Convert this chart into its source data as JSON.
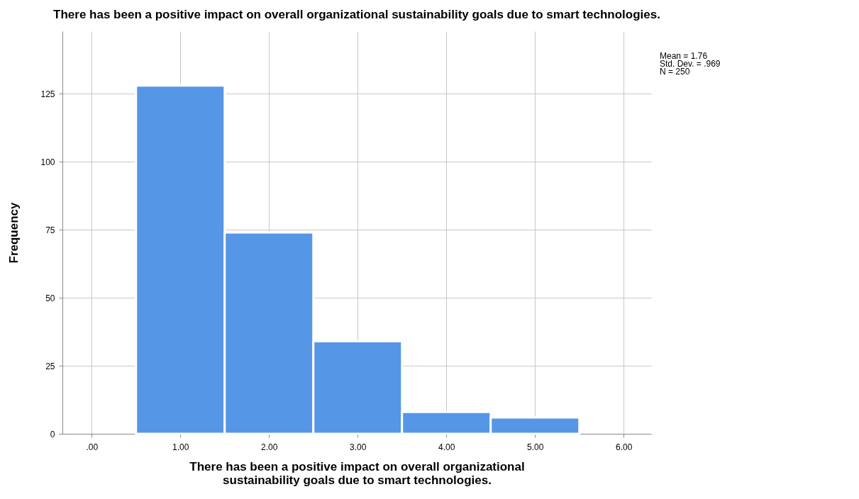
{
  "chart_data": {
    "type": "histogram",
    "title": "There has been a positive impact on overall organizational sustainability goals due to smart technologies.",
    "xlabel": "There has been a positive impact on overall organizational sustainability goals due to smart technologies.",
    "ylabel": "Frequency",
    "bins": [
      0.5,
      1.5,
      2.5,
      3.5,
      4.5,
      5.5
    ],
    "values": [
      128,
      74,
      34,
      8,
      6
    ],
    "color": "#5596e6",
    "xlim": [
      -0.33,
      6.31
    ],
    "xticks": [
      {
        "value": 0,
        "label": ".00"
      },
      {
        "value": 1,
        "label": "1.00"
      },
      {
        "value": 2,
        "label": "2.00"
      },
      {
        "value": 3,
        "label": "3.00"
      },
      {
        "value": 4,
        "label": "4.00"
      },
      {
        "value": 5,
        "label": "5.00"
      },
      {
        "value": 6,
        "label": "6.00"
      }
    ],
    "ylim": [
      0,
      148
    ],
    "yticks": [
      0,
      25,
      50,
      75,
      100,
      125
    ],
    "grid": true,
    "annotations": [
      "Mean = 1.76",
      "Std. Dev. = .969",
      "N = 250"
    ]
  }
}
